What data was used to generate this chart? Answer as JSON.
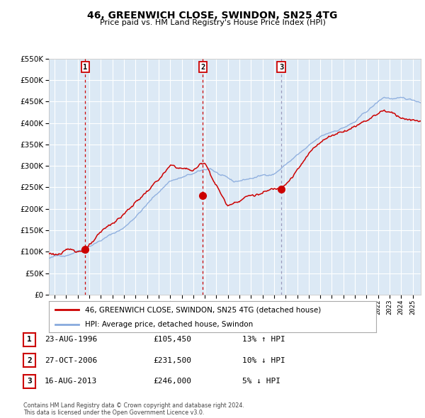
{
  "title": "46, GREENWICH CLOSE, SWINDON, SN25 4TG",
  "subtitle": "Price paid vs. HM Land Registry's House Price Index (HPI)",
  "ylim": [
    0,
    550000
  ],
  "yticks": [
    0,
    50000,
    100000,
    150000,
    200000,
    250000,
    300000,
    350000,
    400000,
    450000,
    500000,
    550000
  ],
  "xlim_start": 1993.5,
  "xlim_end": 2025.7,
  "background_color": "#dce9f5",
  "plot_bg_color": "#dce9f5",
  "grid_color": "#ffffff",
  "sale_points": [
    {
      "year": 1996.644,
      "price": 105450,
      "label": "1"
    },
    {
      "year": 2006.827,
      "price": 231500,
      "label": "2"
    },
    {
      "year": 2013.622,
      "price": 246000,
      "label": "3"
    }
  ],
  "legend_entries": [
    {
      "label": "46, GREENWICH CLOSE, SWINDON, SN25 4TG (detached house)",
      "color": "#cc0000"
    },
    {
      "label": "HPI: Average price, detached house, Swindon",
      "color": "#88aadd"
    }
  ],
  "table_rows": [
    {
      "num": "1",
      "date": "23-AUG-1996",
      "price": "£105,450",
      "change": "13% ↑ HPI"
    },
    {
      "num": "2",
      "date": "27-OCT-2006",
      "price": "£231,500",
      "change": "10% ↓ HPI"
    },
    {
      "num": "3",
      "date": "16-AUG-2013",
      "price": "£246,000",
      "change": "5% ↓ HPI"
    }
  ],
  "footer": "Contains HM Land Registry data © Crown copyright and database right 2024.\nThis data is licensed under the Open Government Licence v3.0.",
  "hpi_color": "#88aadd",
  "price_color": "#cc0000",
  "marker_color": "#cc0000",
  "label_box_color": "#cc0000",
  "vline1_color": "#cc0000",
  "vline2_color": "#cc0000",
  "vline3_color": "#9999bb"
}
